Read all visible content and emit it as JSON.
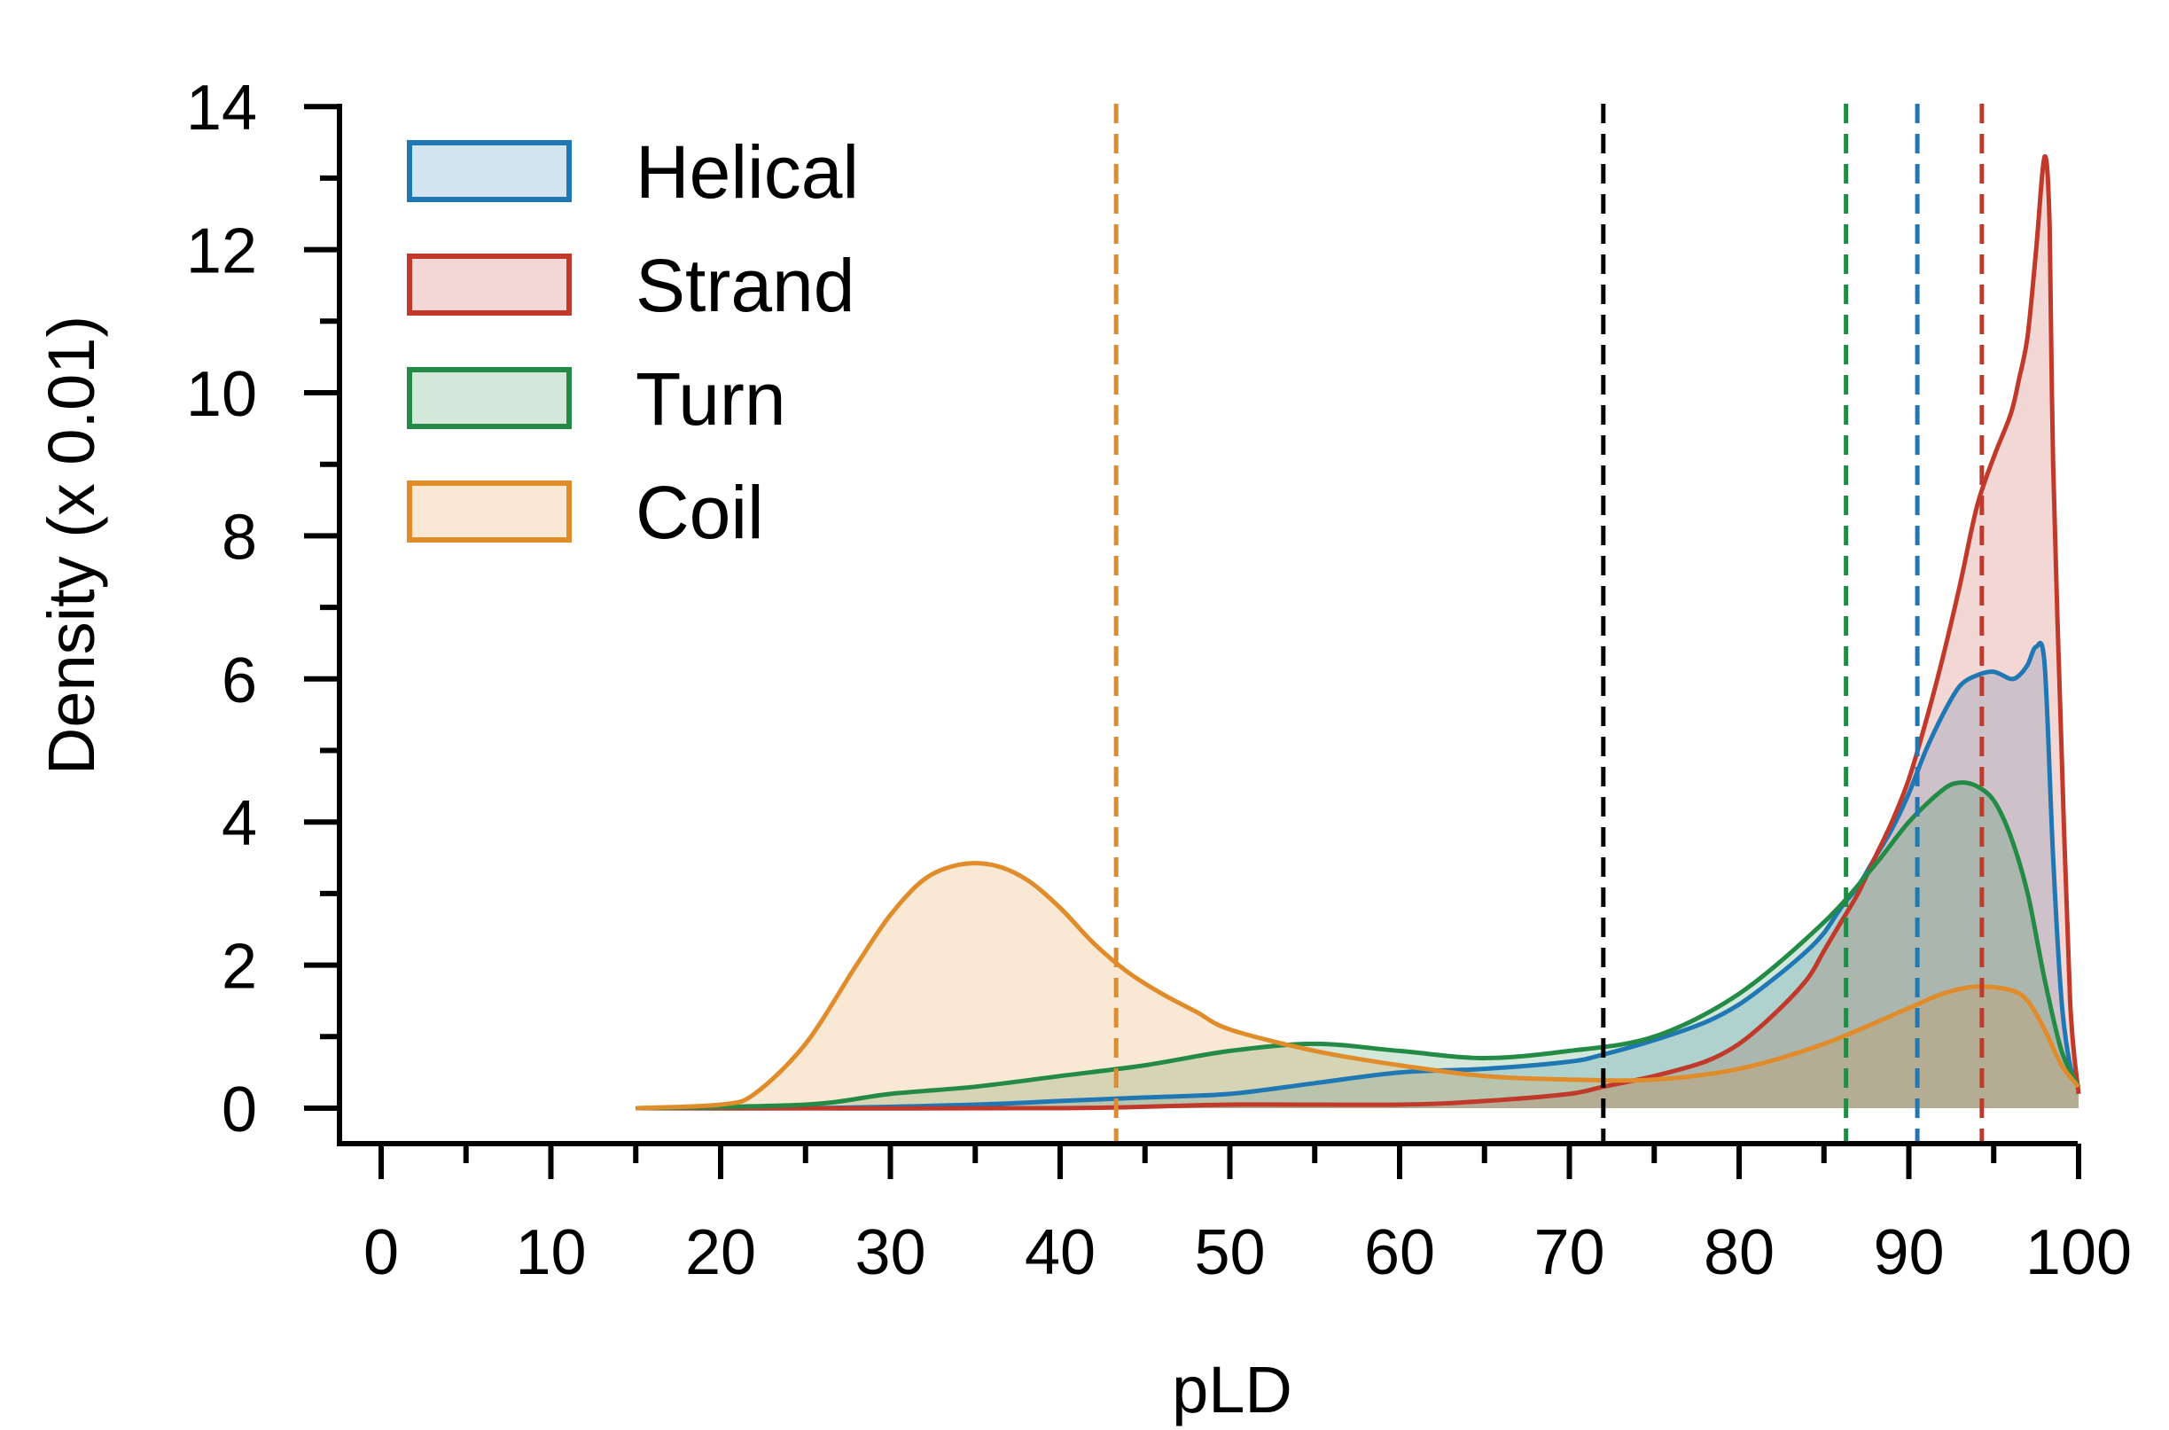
{
  "chart_data": {
    "type": "area",
    "title": "",
    "xlabel": "pLD",
    "ylabel": "Density (x 0.01)",
    "xlim": [
      -5,
      100
    ],
    "ylim": [
      0,
      14
    ],
    "x_ticks": [
      0,
      10,
      20,
      30,
      40,
      50,
      60,
      70,
      80,
      90,
      100
    ],
    "x_tick_labels": [
      "0",
      "10",
      "20",
      "30",
      "40",
      "50",
      "60",
      "70",
      "80",
      "90",
      "100"
    ],
    "y_ticks": [
      0,
      2,
      4,
      6,
      8,
      10,
      12,
      14
    ],
    "y_tick_labels": [
      "0",
      "2",
      "4",
      "6",
      "8",
      "10",
      "12",
      "14"
    ],
    "grid": false,
    "legend_position": "top-left",
    "series": [
      {
        "name": "Helical",
        "color": "#1f77b4",
        "x": [
          15,
          25,
          35,
          40,
          45,
          50,
          55,
          60,
          65,
          70,
          72,
          75,
          78,
          80,
          82,
          84,
          85,
          86,
          87,
          88,
          89,
          90,
          91,
          92,
          93,
          94,
          95,
          96,
          96.5,
          97,
          97.5,
          98,
          98.5,
          99,
          99.5,
          100
        ],
        "values": [
          0,
          0,
          0.05,
          0.1,
          0.15,
          0.2,
          0.35,
          0.5,
          0.55,
          0.65,
          0.75,
          0.95,
          1.2,
          1.45,
          1.8,
          2.2,
          2.45,
          2.8,
          3.1,
          3.5,
          3.9,
          4.4,
          5.0,
          5.5,
          5.9,
          6.05,
          6.1,
          6.0,
          6.05,
          6.2,
          6.45,
          6.2,
          3.5,
          1.5,
          0.6,
          0.3
        ]
      },
      {
        "name": "Strand",
        "color": "#c0392b",
        "x": [
          15,
          40,
          50,
          60,
          65,
          70,
          72,
          75,
          78,
          80,
          82,
          84,
          85,
          86,
          87,
          88,
          89,
          90,
          91,
          92,
          93,
          94,
          95,
          96,
          96.5,
          97,
          97.5,
          98,
          98.3,
          98.5,
          99,
          99.5,
          100
        ],
        "values": [
          0,
          0,
          0.05,
          0.05,
          0.1,
          0.2,
          0.3,
          0.45,
          0.65,
          0.9,
          1.3,
          1.8,
          2.2,
          2.6,
          3.0,
          3.5,
          4.0,
          4.6,
          5.4,
          6.3,
          7.3,
          8.4,
          9.1,
          9.7,
          10.2,
          10.8,
          12.0,
          13.3,
          12.3,
          9.0,
          5.0,
          1.5,
          0.2
        ]
      },
      {
        "name": "Turn",
        "color": "#238b45",
        "x": [
          15,
          25,
          30,
          35,
          40,
          45,
          50,
          55,
          60,
          65,
          70,
          75,
          80,
          85,
          88,
          90,
          92,
          93,
          94,
          95,
          96,
          97,
          98,
          99,
          100
        ],
        "values": [
          0,
          0.05,
          0.2,
          0.3,
          0.45,
          0.6,
          0.8,
          0.9,
          0.8,
          0.7,
          0.8,
          1.0,
          1.6,
          2.6,
          3.4,
          4.0,
          4.45,
          4.55,
          4.5,
          4.3,
          3.8,
          3.0,
          1.8,
          0.8,
          0.3
        ]
      },
      {
        "name": "Coil",
        "color": "#e08c2a",
        "x": [
          15,
          20,
          22,
          25,
          28,
          30,
          32,
          34,
          36,
          38,
          40,
          42,
          44,
          46,
          48,
          50,
          55,
          60,
          65,
          70,
          75,
          80,
          85,
          90,
          92,
          94,
          96,
          97,
          98,
          99,
          100
        ],
        "values": [
          0,
          0.05,
          0.2,
          0.9,
          2.0,
          2.7,
          3.2,
          3.4,
          3.4,
          3.2,
          2.8,
          2.3,
          1.9,
          1.6,
          1.35,
          1.1,
          0.8,
          0.6,
          0.45,
          0.4,
          0.4,
          0.55,
          0.9,
          1.4,
          1.6,
          1.7,
          1.65,
          1.5,
          1.1,
          0.6,
          0.3
        ]
      }
    ],
    "reference_lines": [
      {
        "series": "Coil",
        "x": 43.3,
        "color": "#e08c2a"
      },
      {
        "series": "all",
        "x": 72,
        "color": "#000000"
      },
      {
        "series": "Turn",
        "x": 86.3,
        "color": "#238b45"
      },
      {
        "series": "Helical",
        "x": 90.5,
        "color": "#1f77b4"
      },
      {
        "series": "Strand",
        "x": 94.3,
        "color": "#c0392b"
      }
    ]
  }
}
